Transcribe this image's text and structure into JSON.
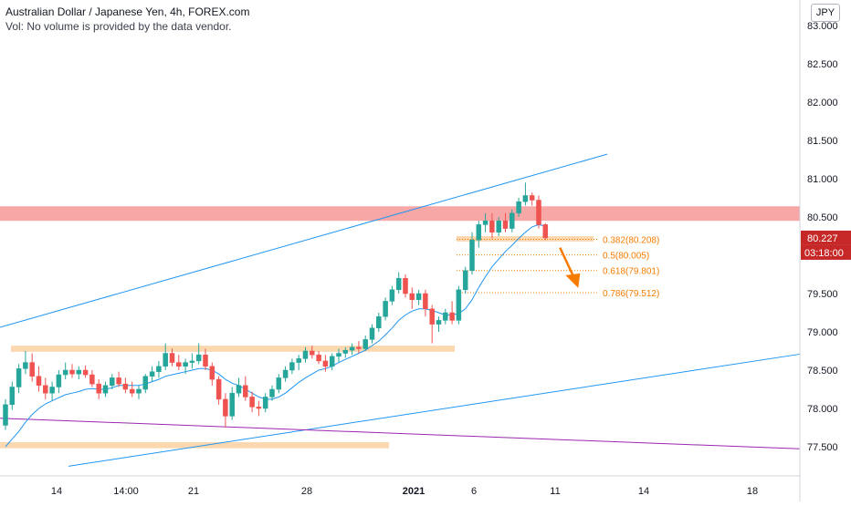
{
  "header": {
    "title": "Australian Dollar / Japanese Yen, 4h, FOREX.com",
    "volume_note": "Vol: No volume is provided by the data vendor.",
    "currency_button": "JPY"
  },
  "colors": {
    "up": "#26a69a",
    "down": "#ef5350",
    "body_up": "#ffffff",
    "ma": "#2196f3",
    "channel": "#2196f3",
    "trend": "#9c27b0",
    "zone_orange": "#fbd8b0",
    "zone_red": "#f8a7a7",
    "fib": "#f57c00",
    "price_tag": "#c62828"
  },
  "chart_data": {
    "type": "candlestick",
    "symbol": "AUDJPY",
    "timeframe": "4h",
    "ylim": [
      77.2,
      83.2
    ],
    "y_ticks": [
      "83.000",
      "82.500",
      "82.000",
      "81.500",
      "81.000",
      "80.500",
      "80.000",
      "79.500",
      "79.000",
      "78.500",
      "78.000",
      "77.500"
    ],
    "x_ticks": [
      "14",
      "14:00",
      "21",
      "28",
      "2021",
      "6",
      "11",
      "14",
      "18"
    ],
    "last_price": "80.227",
    "countdown": "03:18:00",
    "candles": [
      [
        77.78,
        78.12,
        77.72,
        78.05
      ],
      [
        78.05,
        78.35,
        77.98,
        78.28
      ],
      [
        78.28,
        78.58,
        78.2,
        78.52
      ],
      [
        78.52,
        78.75,
        78.45,
        78.6
      ],
      [
        78.6,
        78.72,
        78.35,
        78.42
      ],
      [
        78.42,
        78.55,
        78.22,
        78.3
      ],
      [
        78.3,
        78.4,
        78.12,
        78.2
      ],
      [
        78.2,
        78.35,
        78.1,
        78.28
      ],
      [
        78.28,
        78.5,
        78.2,
        78.44
      ],
      [
        78.44,
        78.6,
        78.38,
        78.5
      ],
      [
        78.5,
        78.58,
        78.4,
        78.45
      ],
      [
        78.45,
        78.55,
        78.38,
        78.5
      ],
      [
        78.5,
        78.56,
        78.4,
        78.44
      ],
      [
        78.44,
        78.5,
        78.28,
        78.32
      ],
      [
        78.32,
        78.38,
        78.12,
        78.2
      ],
      [
        78.2,
        78.35,
        78.15,
        78.3
      ],
      [
        78.3,
        78.45,
        78.25,
        78.4
      ],
      [
        78.4,
        78.48,
        78.28,
        78.32
      ],
      [
        78.32,
        78.4,
        78.2,
        78.25
      ],
      [
        78.25,
        78.35,
        78.15,
        78.2
      ],
      [
        78.2,
        78.3,
        78.12,
        78.25
      ],
      [
        78.25,
        78.45,
        78.2,
        78.42
      ],
      [
        78.42,
        78.55,
        78.35,
        78.48
      ],
      [
        78.48,
        78.62,
        78.4,
        78.55
      ],
      [
        78.55,
        78.85,
        78.5,
        78.72
      ],
      [
        78.72,
        78.78,
        78.55,
        78.6
      ],
      [
        78.6,
        78.7,
        78.5,
        78.55
      ],
      [
        78.55,
        78.65,
        78.45,
        78.6
      ],
      [
        78.6,
        78.72,
        78.52,
        78.62
      ],
      [
        78.62,
        78.85,
        78.58,
        78.7
      ],
      [
        78.7,
        78.78,
        78.5,
        78.55
      ],
      [
        78.55,
        78.6,
        78.3,
        78.38
      ],
      [
        78.38,
        78.42,
        78.05,
        78.12
      ],
      [
        78.12,
        78.2,
        77.75,
        77.9
      ],
      [
        77.9,
        78.28,
        77.85,
        78.2
      ],
      [
        78.2,
        78.4,
        78.15,
        78.3
      ],
      [
        78.3,
        78.42,
        78.1,
        78.15
      ],
      [
        78.15,
        78.22,
        77.95,
        78.02
      ],
      [
        78.02,
        78.1,
        77.9,
        78.0
      ],
      [
        78.0,
        78.2,
        77.95,
        78.15
      ],
      [
        78.15,
        78.3,
        78.1,
        78.25
      ],
      [
        78.25,
        78.45,
        78.2,
        78.4
      ],
      [
        78.4,
        78.55,
        78.35,
        78.5
      ],
      [
        78.5,
        78.65,
        78.45,
        78.6
      ],
      [
        78.6,
        78.7,
        78.5,
        78.65
      ],
      [
        78.65,
        78.8,
        78.6,
        78.75
      ],
      [
        78.75,
        78.82,
        78.65,
        78.7
      ],
      [
        78.7,
        78.75,
        78.58,
        78.62
      ],
      [
        78.62,
        78.7,
        78.48,
        78.55
      ],
      [
        78.55,
        78.72,
        78.5,
        78.68
      ],
      [
        78.68,
        78.78,
        78.6,
        78.72
      ],
      [
        78.72,
        78.8,
        78.66,
        78.76
      ],
      [
        78.76,
        78.85,
        78.7,
        78.8
      ],
      [
        78.8,
        78.88,
        78.72,
        78.78
      ],
      [
        78.78,
        78.95,
        78.75,
        78.9
      ],
      [
        78.9,
        79.1,
        78.85,
        79.05
      ],
      [
        79.05,
        79.25,
        79.0,
        79.2
      ],
      [
        79.2,
        79.45,
        79.15,
        79.4
      ],
      [
        79.4,
        79.6,
        79.35,
        79.55
      ],
      [
        79.55,
        79.78,
        79.5,
        79.7
      ],
      [
        79.7,
        79.75,
        79.45,
        79.5
      ],
      [
        79.5,
        79.58,
        79.3,
        79.42
      ],
      [
        79.42,
        79.55,
        79.35,
        79.5
      ],
      [
        79.5,
        79.55,
        79.2,
        79.3
      ],
      [
        79.3,
        79.35,
        78.85,
        79.1
      ],
      [
        79.1,
        79.2,
        79.0,
        79.15
      ],
      [
        79.15,
        79.3,
        79.1,
        79.25
      ],
      [
        79.25,
        79.4,
        79.1,
        79.15
      ],
      [
        79.15,
        79.6,
        79.1,
        79.55
      ],
      [
        79.55,
        79.85,
        79.5,
        79.8
      ],
      [
        79.8,
        80.3,
        79.75,
        80.2
      ],
      [
        80.2,
        80.45,
        80.1,
        80.4
      ],
      [
        80.4,
        80.55,
        80.3,
        80.45
      ],
      [
        80.45,
        80.55,
        80.22,
        80.3
      ],
      [
        80.3,
        80.5,
        80.25,
        80.45
      ],
      [
        80.45,
        80.55,
        80.3,
        80.35
      ],
      [
        80.35,
        80.6,
        80.3,
        80.55
      ],
      [
        80.55,
        80.75,
        80.5,
        80.7
      ],
      [
        80.7,
        80.95,
        80.65,
        80.78
      ],
      [
        80.78,
        80.82,
        80.65,
        80.72
      ],
      [
        80.72,
        80.78,
        80.35,
        80.4
      ],
      [
        80.4,
        80.42,
        80.2,
        80.227
      ]
    ],
    "ma20": [
      77.5,
      77.6,
      77.7,
      77.82,
      77.92,
      78.0,
      78.06,
      78.1,
      78.14,
      78.18,
      78.2,
      78.22,
      78.25,
      78.26,
      78.25,
      78.25,
      78.27,
      78.3,
      78.3,
      78.3,
      78.3,
      78.32,
      78.35,
      78.38,
      78.42,
      78.44,
      78.46,
      78.48,
      78.5,
      78.52,
      78.52,
      78.5,
      78.45,
      78.38,
      78.33,
      78.3,
      78.25,
      78.2,
      78.15,
      78.12,
      78.12,
      78.15,
      78.2,
      78.27,
      78.34,
      78.4,
      78.45,
      78.5,
      78.52,
      78.55,
      78.6,
      78.64,
      78.68,
      78.72,
      78.76,
      78.82,
      78.88,
      78.96,
      79.05,
      79.15,
      79.22,
      79.27,
      79.3,
      79.3,
      79.28,
      79.25,
      79.22,
      79.22,
      79.24,
      79.3,
      79.42,
      79.58,
      79.72,
      79.85,
      79.95,
      80.05,
      80.13,
      80.22,
      80.3,
      80.37,
      80.4,
      80.38
    ],
    "annotations": {
      "fib_levels": [
        {
          "ratio": "0.382",
          "price": 80.208,
          "label": "0.382(80.208)"
        },
        {
          "ratio": "0.5",
          "price": 80.005,
          "label": "0.5(80.005)"
        },
        {
          "ratio": "0.618",
          "price": 79.801,
          "label": "0.618(79.801)"
        },
        {
          "ratio": "0.786",
          "price": 79.512,
          "label": "0.786(79.512)"
        }
      ],
      "resistance_zone": [
        80.45,
        80.64
      ],
      "support_zone_upper": [
        78.74,
        78.82
      ],
      "support_zone_lower": [
        77.48,
        77.56
      ],
      "fib_zone": [
        80.18,
        80.25
      ],
      "channel_upper": [
        [
          0,
          79.08
        ],
        [
          81,
          81.09
        ]
      ],
      "channel_lower": [
        [
          0,
          77.12
        ],
        [
          81,
          78.2
        ]
      ],
      "trendline": [
        [
          0,
          77.87
        ],
        [
          81,
          77.6
        ]
      ]
    }
  }
}
